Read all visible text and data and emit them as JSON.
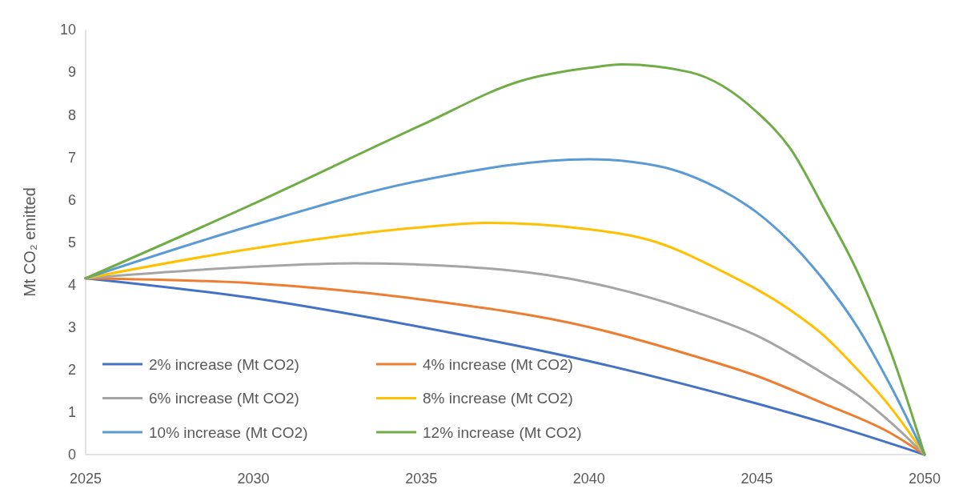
{
  "chart_data": {
    "type": "line",
    "ylabel": "Mt CO₂ emitted",
    "xlim": [
      2025,
      2050
    ],
    "xticks": [
      2025,
      2030,
      2035,
      2040,
      2045,
      2050
    ],
    "ylim": [
      0,
      10
    ],
    "yticks": [
      0,
      1,
      2,
      3,
      4,
      5,
      6,
      7,
      8,
      9,
      10
    ],
    "grid": false,
    "legend": "bottom left",
    "marker": "none",
    "line_style": "solid",
    "series": [
      {
        "name": "2% increase (Mt CO2)",
        "color": "#4472c4",
        "x": [
          2025,
          2030,
          2035,
          2040,
          2045,
          2047,
          2050
        ],
        "values": [
          4.15,
          3.68,
          3.0,
          2.2,
          1.2,
          0.75,
          0
        ]
      },
      {
        "name": "4% increase (Mt CO2)",
        "color": "#ed7d31",
        "x": [
          2025,
          2030,
          2035,
          2040,
          2043,
          2045,
          2047,
          2049,
          2050
        ],
        "values": [
          4.15,
          4.03,
          3.65,
          3.0,
          2.35,
          1.85,
          1.2,
          0.5,
          0
        ]
      },
      {
        "name": "6% increase (Mt CO2)",
        "color": "#a5a5a5",
        "x": [
          2025,
          2030,
          2033,
          2035,
          2040,
          2043,
          2045,
          2047,
          2048,
          2049,
          2050
        ],
        "values": [
          4.15,
          4.42,
          4.5,
          4.47,
          4.05,
          3.4,
          2.8,
          1.9,
          1.4,
          0.75,
          0
        ]
      },
      {
        "name": "8% increase (Mt CO2)",
        "color": "#ffc000",
        "x": [
          2025,
          2030,
          2035,
          2037,
          2040,
          2042,
          2044,
          2046,
          2047,
          2048,
          2049,
          2050
        ],
        "values": [
          4.15,
          4.85,
          5.35,
          5.45,
          5.3,
          5.0,
          4.3,
          3.4,
          2.8,
          2.0,
          1.1,
          0
        ]
      },
      {
        "name": "10% increase (Mt CO2)",
        "color": "#5b9bd5",
        "x": [
          2025,
          2030,
          2035,
          2040,
          2042,
          2044,
          2045,
          2046,
          2047,
          2048,
          2049,
          2050
        ],
        "values": [
          4.15,
          5.4,
          6.45,
          6.95,
          6.8,
          6.2,
          5.7,
          5.0,
          4.1,
          3.0,
          1.6,
          0
        ]
      },
      {
        "name": "12% increase (Mt CO2)",
        "color": "#70ad47",
        "x": [
          2025,
          2030,
          2035,
          2038,
          2040,
          2041,
          2043,
          2045,
          2046,
          2047,
          2048,
          2049,
          2050
        ],
        "values": [
          4.15,
          5.9,
          7.75,
          8.8,
          9.1,
          9.18,
          9.0,
          8.06,
          7.2,
          5.8,
          4.3,
          2.4,
          0
        ]
      }
    ]
  }
}
